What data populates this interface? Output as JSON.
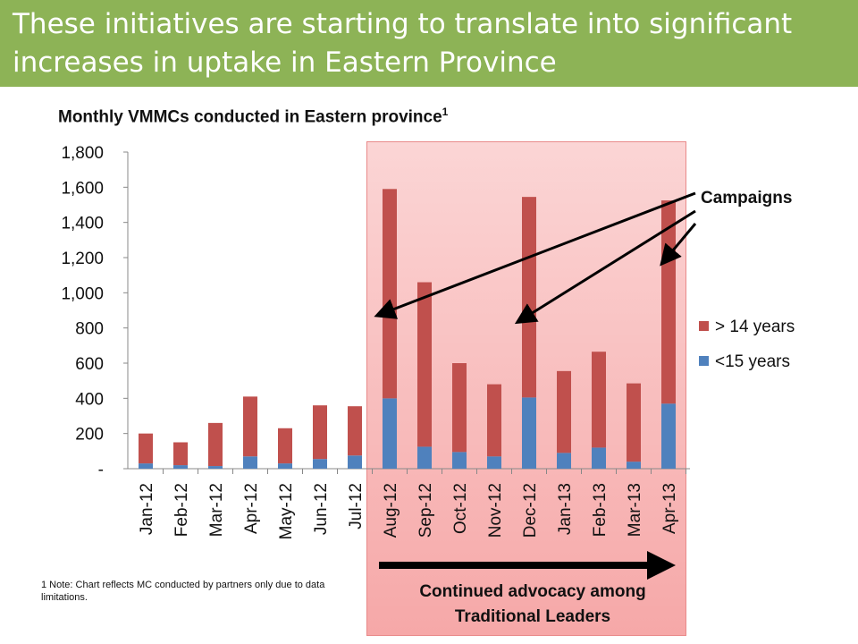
{
  "slide": {
    "title": "These initiatives are starting to translate into significant increases in uptake in Eastern Province",
    "footnote": "1 Note: Chart reflects MC conducted by partners only due to data limitations.",
    "advocacy_label": "Continued advocacy among Traditional Leaders",
    "campaigns_label": "Campaigns",
    "colors": {
      "title_bar": "#8db356",
      "older": "#c0504d",
      "younger": "#4f81bd",
      "highlight": "#f6a8a8"
    }
  },
  "chart_data": {
    "type": "bar",
    "stacked": true,
    "title": "Monthly VMMCs conducted in Eastern province",
    "title_superscript": "1",
    "categories": [
      "Jan-12",
      "Feb-12",
      "Mar-12",
      "Apr-12",
      "May-12",
      "Jun-12",
      "Jul-12",
      "Aug-12",
      "Sep-12",
      "Oct-12",
      "Nov-12",
      "Dec-12",
      "Jan-13",
      "Feb-13",
      "Mar-13",
      "Apr-13"
    ],
    "series": [
      {
        "name": "<15 years",
        "color": "#4f81bd",
        "values": [
          30,
          20,
          15,
          70,
          30,
          55,
          75,
          400,
          125,
          95,
          70,
          405,
          90,
          120,
          40,
          370
        ]
      },
      {
        "name": "> 14 years",
        "color": "#c0504d",
        "values": [
          170,
          130,
          245,
          340,
          200,
          305,
          280,
          1190,
          935,
          505,
          410,
          1140,
          465,
          545,
          445,
          1155
        ]
      }
    ],
    "ylim": [
      0,
      1800
    ],
    "yticks": [
      "-",
      "200",
      "400",
      "600",
      "800",
      "1,000",
      "1,200",
      "1,400",
      "1,600",
      "1,800"
    ],
    "legend_position": "right",
    "grid": false
  }
}
